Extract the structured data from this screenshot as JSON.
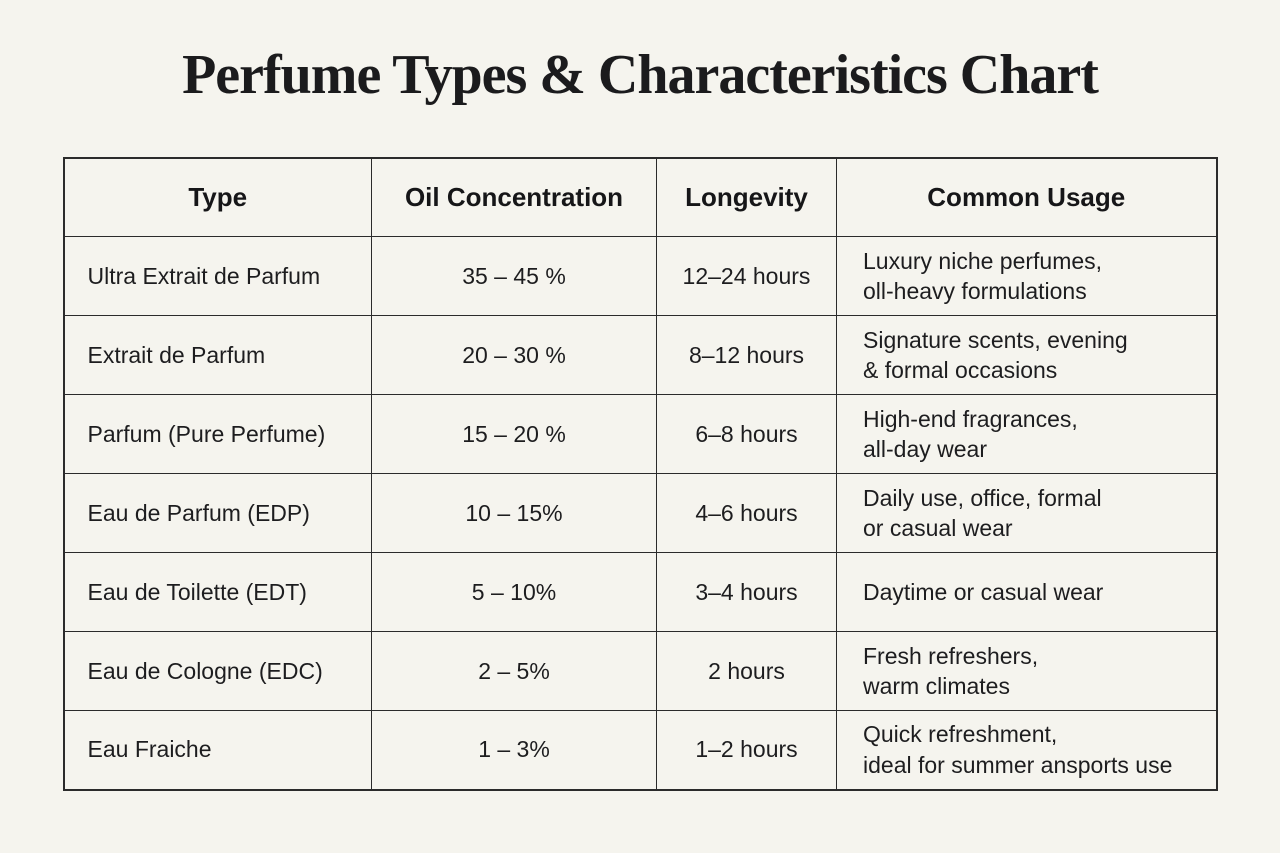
{
  "title": "Perfume Types & Characteristics Chart",
  "colors": {
    "background": "#f5f4ee",
    "text": "#1d1d1f",
    "border": "#2b2b2b"
  },
  "chart_data": {
    "type": "table",
    "title": "Perfume Types & Characteristics Chart",
    "columns": [
      "Type",
      "Oil Concentration",
      "Longevity",
      "Common Usage"
    ],
    "rows": [
      [
        "Ultra Extrait de Parfum",
        "35 – 45 %",
        "12–24 hours",
        "Luxury niche perfumes,\noll-heavy formulations"
      ],
      [
        "Extrait de Parfum",
        "20 – 30 %",
        "8–12 hours",
        "Signature scents, evening\n& formal occasions"
      ],
      [
        "Parfum (Pure Perfume)",
        "15 – 20 %",
        "6–8 hours",
        "High-end fragrances,\nall-day wear"
      ],
      [
        "Eau de Parfum (EDP)",
        "10 – 15%",
        "4–6 hours",
        "Daily use, office, formal\nor casual wear"
      ],
      [
        "Eau de Toilette (EDT)",
        "5 – 10%",
        "3–4 hours",
        "Daytime or casual wear"
      ],
      [
        "Eau de Cologne (EDC)",
        "2 – 5%",
        "2 hours",
        "Fresh refreshers,\nwarm climates"
      ],
      [
        "Eau Fraiche",
        "1 – 3%",
        "1–2 hours",
        "Quick refreshment,\nideal for summer ansports use"
      ]
    ]
  }
}
